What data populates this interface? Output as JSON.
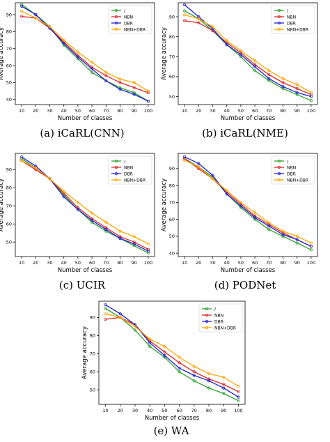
{
  "chart_data": [
    {
      "type": "line",
      "caption": "(a) iCaRL(CNN)",
      "xlabel": "Number of classes",
      "ylabel": "Average accuracy",
      "x": [
        10,
        20,
        30,
        40,
        50,
        60,
        70,
        80,
        90,
        100
      ],
      "xticks": [
        "10",
        "20",
        "30",
        "40",
        "50",
        "60",
        "70",
        "80",
        "90",
        "100"
      ],
      "yticks": [
        40,
        50,
        60,
        70,
        80,
        90
      ],
      "ylim": [
        37,
        97
      ],
      "legend_position": "top-right",
      "grid": false,
      "series": [
        {
          "name": "/",
          "color": "#2ca02c",
          "values": [
            96,
            90,
            83,
            72,
            64,
            56,
            51,
            47,
            44,
            39
          ]
        },
        {
          "name": "NBN",
          "color": "#d62728",
          "values": [
            89,
            88,
            82,
            74,
            66,
            59,
            54,
            50,
            47,
            44
          ]
        },
        {
          "name": "DBR",
          "color": "#1f1fcf",
          "values": [
            95,
            90,
            82,
            73,
            65,
            58,
            51,
            46,
            43,
            39
          ]
        },
        {
          "name": "NBN+DBR",
          "color": "#ffa500",
          "values": [
            92,
            88,
            83,
            75,
            68,
            62,
            56,
            52,
            50,
            45
          ]
        }
      ]
    },
    {
      "type": "line",
      "caption": "(b) iCaRL(NME)",
      "xlabel": "Number of classes",
      "ylabel": "Average accuracy",
      "x": [
        10,
        20,
        30,
        40,
        50,
        60,
        70,
        80,
        90,
        100
      ],
      "xticks": [
        "10",
        "20",
        "30",
        "40",
        "50",
        "60",
        "70",
        "80",
        "90",
        "100"
      ],
      "yticks": [
        50,
        60,
        70,
        80,
        90
      ],
      "ylim": [
        46,
        97
      ],
      "legend_position": "top-right",
      "grid": false,
      "series": [
        {
          "name": "/",
          "color": "#2ca02c",
          "values": [
            93,
            89,
            83,
            76,
            70,
            63,
            58,
            54,
            51,
            48
          ]
        },
        {
          "name": "NBN",
          "color": "#d62728",
          "values": [
            88,
            87,
            83,
            77,
            72,
            66,
            61,
            57,
            54,
            51
          ]
        },
        {
          "name": "DBR",
          "color": "#1f1fcf",
          "values": [
            96,
            90,
            84,
            76,
            71,
            65,
            59,
            55,
            52,
            50
          ]
        },
        {
          "name": "NBN+DBR",
          "color": "#ffa500",
          "values": [
            91,
            89,
            85,
            78,
            73,
            68,
            63,
            59,
            56,
            52
          ]
        }
      ]
    },
    {
      "type": "line",
      "caption": "(c) UCIR",
      "xlabel": "Number of classes",
      "ylabel": "Average accuracy",
      "x": [
        10,
        20,
        30,
        40,
        50,
        60,
        70,
        80,
        90,
        100
      ],
      "xticks": [
        "10",
        "20",
        "30",
        "40",
        "50",
        "60",
        "70",
        "80",
        "90",
        "100"
      ],
      "yticks": [
        50,
        60,
        70,
        80,
        90
      ],
      "ylim": [
        42,
        99
      ],
      "legend_position": "top-right",
      "grid": false,
      "series": [
        {
          "name": "/",
          "color": "#2ca02c",
          "values": [
            96,
            91,
            85,
            76,
            68,
            61,
            56,
            52,
            48,
            44
          ]
        },
        {
          "name": "NBN",
          "color": "#d62728",
          "values": [
            95,
            90,
            85,
            77,
            69,
            63,
            58,
            53,
            50,
            46
          ]
        },
        {
          "name": "DBR",
          "color": "#1f1fcf",
          "values": [
            97,
            92,
            85,
            75,
            68,
            62,
            57,
            52,
            49,
            45
          ]
        },
        {
          "name": "NBN+DBR",
          "color": "#ffa500",
          "values": [
            95,
            91,
            85,
            78,
            72,
            66,
            61,
            56,
            53,
            49
          ]
        }
      ]
    },
    {
      "type": "line",
      "caption": "(d) PODNet",
      "xlabel": "Number of classes",
      "ylabel": "Average accuracy",
      "x": [
        10,
        20,
        30,
        40,
        50,
        60,
        70,
        80,
        90,
        100
      ],
      "xticks": [
        "10",
        "20",
        "30",
        "40",
        "50",
        "60",
        "70",
        "80",
        "90",
        "100"
      ],
      "yticks": [
        40,
        50,
        60,
        70,
        80,
        90
      ],
      "ylim": [
        38,
        99
      ],
      "legend_position": "top-right",
      "grid": false,
      "series": [
        {
          "name": "/",
          "color": "#2ca02c",
          "values": [
            96,
            91,
            85,
            75,
            67,
            60,
            54,
            50,
            46,
            42
          ]
        },
        {
          "name": "NBN",
          "color": "#d62728",
          "values": [
            96,
            90,
            84,
            76,
            69,
            62,
            57,
            52,
            48,
            44
          ]
        },
        {
          "name": "DBR",
          "color": "#1f1fcf",
          "values": [
            97,
            93,
            86,
            75,
            68,
            61,
            56,
            51,
            48,
            44
          ]
        },
        {
          "name": "NBN+DBR",
          "color": "#ffa500",
          "values": [
            95,
            91,
            84,
            77,
            70,
            64,
            58,
            53,
            50,
            46
          ]
        }
      ]
    },
    {
      "type": "line",
      "caption": "(e) WA",
      "xlabel": "Number of classes",
      "ylabel": "Average accuracy",
      "x": [
        10,
        20,
        30,
        40,
        50,
        60,
        70,
        80,
        90,
        100
      ],
      "xticks": [
        "10",
        "20",
        "30",
        "40",
        "50",
        "60",
        "70",
        "80",
        "90",
        "100"
      ],
      "yticks": [
        50,
        60,
        70,
        80,
        90
      ],
      "ylim": [
        42,
        99
      ],
      "legend_position": "top-right",
      "grid": false,
      "series": [
        {
          "name": "/",
          "color": "#2ca02c",
          "values": [
            95,
            90,
            83,
            74,
            68,
            60,
            55,
            51,
            48,
            44
          ]
        },
        {
          "name": "NBN",
          "color": "#d62728",
          "values": [
            89,
            90,
            86,
            77,
            71,
            65,
            60,
            56,
            53,
            49
          ]
        },
        {
          "name": "DBR",
          "color": "#1f1fcf",
          "values": [
            97,
            92,
            86,
            76,
            69,
            62,
            58,
            55,
            51,
            46
          ]
        },
        {
          "name": "NBN+DBR",
          "color": "#ffa500",
          "values": [
            92,
            90,
            85,
            78,
            74,
            68,
            63,
            59,
            57,
            52
          ]
        }
      ]
    }
  ]
}
